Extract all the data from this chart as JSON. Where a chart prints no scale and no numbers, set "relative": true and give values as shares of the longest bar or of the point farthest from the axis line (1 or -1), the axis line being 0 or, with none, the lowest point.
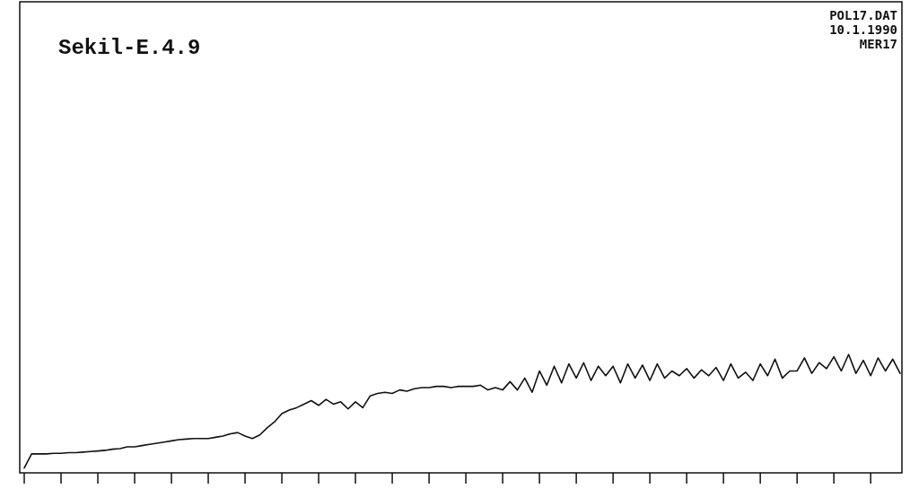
{
  "chart_data": {
    "type": "line",
    "title": "Sekil-E.4.9",
    "annotations": [
      "POL17.DAT",
      "10.1.1990",
      "MER17"
    ],
    "relative": true,
    "tick_labels": false,
    "grid": false,
    "marker": "none",
    "line_style": "solid",
    "categories": [
      null,
      null,
      null,
      null,
      null,
      null,
      null,
      null,
      null,
      null,
      null,
      null,
      null,
      null,
      null,
      null,
      null,
      null,
      null,
      null,
      null,
      null,
      null,
      null,
      null,
      null,
      null,
      null,
      null,
      null,
      null,
      null,
      null,
      null,
      null,
      null,
      null,
      null,
      null,
      null,
      null,
      null,
      null,
      null,
      null,
      null,
      null,
      null,
      null,
      null,
      null,
      null,
      null,
      null,
      null,
      null,
      null,
      null,
      null,
      null,
      null,
      null,
      null,
      null,
      null,
      null,
      null,
      null,
      null,
      null,
      null,
      null,
      null,
      null,
      null,
      null,
      null,
      null,
      null,
      null,
      null,
      null,
      null,
      null,
      null,
      null,
      null,
      null,
      null,
      null,
      null,
      null,
      null,
      null,
      null,
      null,
      null,
      null,
      null,
      null,
      null,
      null,
      null,
      null,
      null,
      null,
      null,
      null,
      null,
      null,
      null,
      null,
      null,
      null,
      null,
      null,
      null,
      null,
      null,
      null
    ],
    "series": [
      {
        "color": "#111111",
        "values": [
          0.04,
          0.16,
          0.16,
          0.16,
          0.165,
          0.165,
          0.17,
          0.17,
          0.175,
          0.18,
          0.185,
          0.19,
          0.2,
          0.205,
          0.22,
          0.22,
          0.23,
          0.24,
          0.25,
          0.26,
          0.27,
          0.28,
          0.285,
          0.29,
          0.29,
          0.29,
          0.3,
          0.31,
          0.33,
          0.34,
          0.31,
          0.29,
          0.32,
          0.38,
          0.43,
          0.5,
          0.53,
          0.55,
          0.58,
          0.61,
          0.57,
          0.62,
          0.58,
          0.6,
          0.54,
          0.6,
          0.55,
          0.65,
          0.67,
          0.68,
          0.67,
          0.7,
          0.69,
          0.71,
          0.72,
          0.72,
          0.73,
          0.73,
          0.72,
          0.73,
          0.73,
          0.73,
          0.74,
          0.7,
          0.72,
          0.7,
          0.77,
          0.7,
          0.8,
          0.68,
          0.86,
          0.74,
          0.9,
          0.76,
          0.92,
          0.8,
          0.93,
          0.78,
          0.9,
          0.82,
          0.9,
          0.76,
          0.92,
          0.8,
          0.91,
          0.78,
          0.92,
          0.8,
          0.86,
          0.82,
          0.88,
          0.8,
          0.87,
          0.82,
          0.89,
          0.78,
          0.92,
          0.8,
          0.85,
          0.78,
          0.92,
          0.82,
          0.96,
          0.8,
          0.86,
          0.86,
          0.97,
          0.84,
          0.93,
          0.88,
          0.98,
          0.86,
          1.0,
          0.84,
          0.95,
          0.82,
          0.97,
          0.86,
          0.96,
          0.84
        ]
      }
    ]
  }
}
